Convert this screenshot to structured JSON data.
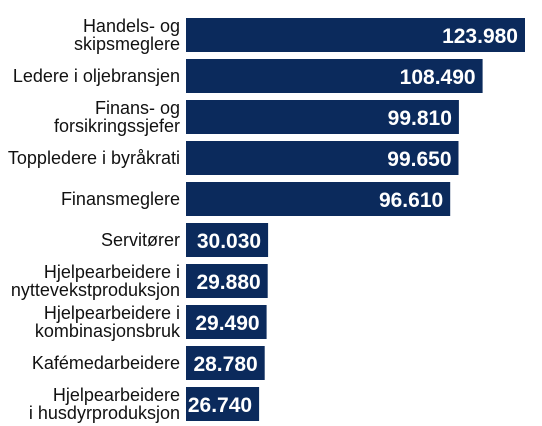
{
  "chart_data": {
    "type": "bar",
    "orientation": "horizontal",
    "title": "",
    "xlabel": "",
    "ylabel": "",
    "categories": [
      [
        "Handels- og",
        "skipsmeglere"
      ],
      [
        "Ledere i oljebransjen"
      ],
      [
        "Finans- og",
        "forsikringssjefer"
      ],
      [
        "Toppledere i byråkrati"
      ],
      [
        "Finansmeglere"
      ],
      [
        "Servitører"
      ],
      [
        "Hjelpearbeidere i",
        "nyttevekstproduksjon"
      ],
      [
        "Hjelpearbeidere i",
        "kombinasjonsbruk"
      ],
      [
        "Kafémedarbeidere"
      ],
      [
        "Hjelpearbeidere",
        "i husdyrproduksjon"
      ]
    ],
    "values": [
      123980,
      108490,
      99810,
      99650,
      96610,
      30030,
      29880,
      29490,
      28780,
      26740
    ],
    "value_labels": [
      "123.980",
      "108.490",
      "99.810",
      "99.650",
      "96.610",
      "30.030",
      "29.880",
      "29.490",
      "28.780",
      "26.740"
    ],
    "xlim": [
      0,
      130000
    ],
    "grid": false,
    "bar_color": "#0b2a5c",
    "value_label_color": "#ffffff",
    "category_label_color": "#111111"
  }
}
